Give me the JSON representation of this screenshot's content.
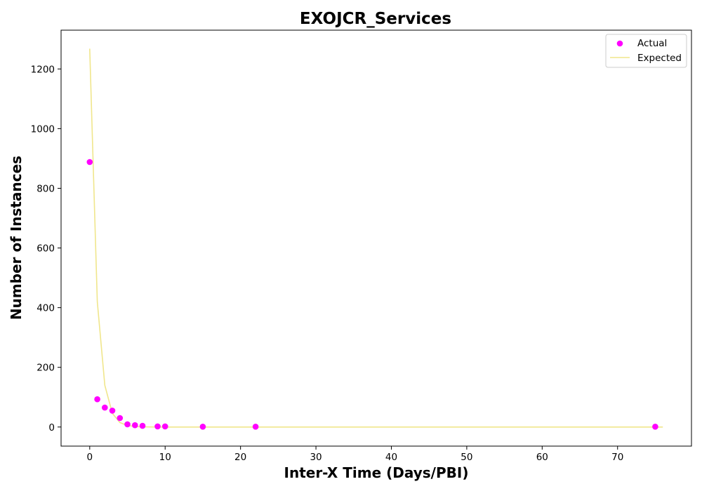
{
  "chart_data": {
    "type": "scatter",
    "title": "EXOJCR_Services",
    "xlabel": "Inter-X Time (Days/PBI)",
    "ylabel": "Number of Instances",
    "xlim": [
      -3.8,
      79.8
    ],
    "ylim": [
      -64,
      1330
    ],
    "xticks": [
      0,
      10,
      20,
      30,
      40,
      50,
      60,
      70
    ],
    "yticks": [
      0,
      200,
      400,
      600,
      800,
      1000,
      1200
    ],
    "grid": false,
    "legend_position": "upper-right",
    "series": [
      {
        "name": "Actual",
        "kind": "scatter",
        "color": "#ff00ff",
        "x": [
          0,
          1,
          2,
          3,
          4,
          5,
          6,
          7,
          9,
          10,
          15,
          22,
          75
        ],
        "y": [
          888,
          93,
          65,
          55,
          30,
          9,
          6,
          4,
          2,
          2,
          1,
          1,
          1
        ]
      },
      {
        "name": "Expected",
        "kind": "line",
        "color": "#f0e68c",
        "x": [
          0,
          1,
          2,
          3,
          4,
          5,
          6,
          7,
          8,
          10,
          15,
          20,
          30,
          40,
          50,
          60,
          70,
          76
        ],
        "y": [
          1268,
          420,
          140,
          46,
          15,
          5,
          1.7,
          0.6,
          0.2,
          0,
          0,
          0,
          0,
          0,
          0,
          0,
          0,
          0
        ]
      }
    ]
  }
}
